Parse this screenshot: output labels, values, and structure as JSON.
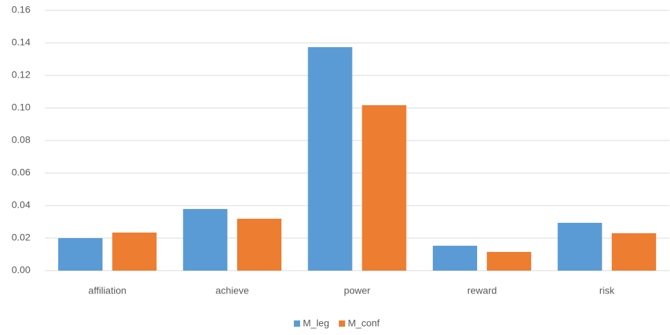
{
  "chart_data": {
    "type": "bar",
    "categories": [
      "affiliation",
      "achieve",
      "power",
      "reward",
      "risk"
    ],
    "series": [
      {
        "name": "M_leg",
        "color": "#5b9bd5",
        "values": [
          0.02,
          0.0379,
          0.1374,
          0.0153,
          0.0294
        ]
      },
      {
        "name": "M_conf",
        "color": "#ed7d31",
        "values": [
          0.0234,
          0.0319,
          0.1017,
          0.0115,
          0.023
        ]
      }
    ],
    "ylim": [
      0,
      0.16
    ],
    "yticks": [
      {
        "value": 0,
        "label": "0.00"
      },
      {
        "value": 0.02,
        "label": "0.02"
      },
      {
        "value": 0.04,
        "label": "0.04"
      },
      {
        "value": 0.06,
        "label": "0.06"
      },
      {
        "value": 0.08,
        "label": "0.08"
      },
      {
        "value": 0.1,
        "label": "0.10"
      },
      {
        "value": 0.12,
        "label": "0.12"
      },
      {
        "value": 0.14,
        "label": "0.14"
      },
      {
        "value": 0.16,
        "label": "0.16"
      }
    ],
    "grid": true,
    "legend": "bottom"
  }
}
